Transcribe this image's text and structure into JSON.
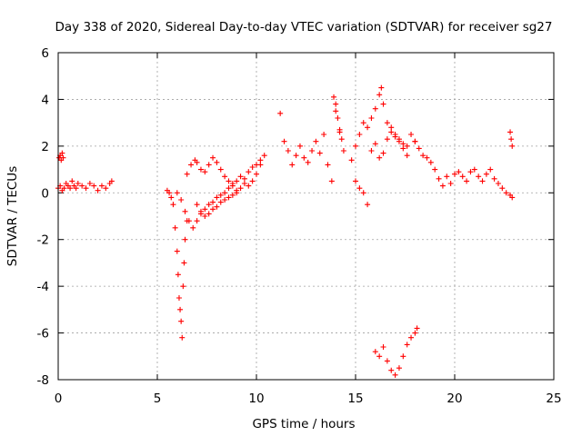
{
  "chart_data": {
    "type": "scatter",
    "title": "Day 338 of 2020, Sidereal Day-to-day VTEC variation (SDTVAR) for receiver sg27",
    "xlabel": "GPS time / hours",
    "ylabel": "SDTVAR / TECUs",
    "xlim": [
      0,
      25
    ],
    "ylim": [
      -8,
      6
    ],
    "xticks": [
      0,
      5,
      10,
      15,
      20,
      25
    ],
    "yticks": [
      -8,
      -6,
      -4,
      -2,
      0,
      2,
      4,
      6
    ],
    "xtick_labels": [
      "0",
      "5",
      "10",
      "15",
      "20",
      "25"
    ],
    "ytick_labels": [
      "-8",
      "-6",
      "-4",
      "-2",
      "0",
      "2",
      "4",
      "6"
    ],
    "grid": true,
    "marker": "+",
    "color": "#ff0000",
    "series": [
      {
        "name": "SDTVAR",
        "x": [
          0.0,
          0.1,
          0.2,
          0.3,
          0.4,
          0.5,
          0.6,
          0.7,
          0.8,
          0.9,
          1.0,
          1.2,
          1.4,
          1.6,
          1.8,
          2.0,
          2.2,
          2.4,
          2.6,
          2.7,
          0.05,
          0.1,
          0.15,
          0.2,
          0.25,
          5.5,
          5.6,
          5.7,
          5.8,
          5.9,
          6.0,
          6.05,
          6.1,
          6.15,
          6.2,
          6.25,
          6.3,
          6.35,
          6.4,
          6.5,
          6.5,
          6.7,
          6.9,
          7.0,
          7.2,
          7.4,
          7.6,
          7.8,
          8.0,
          8.2,
          8.4,
          8.6,
          8.8,
          9.0,
          9.2,
          9.4,
          9.6,
          9.8,
          10.0,
          10.2,
          6.0,
          6.2,
          6.4,
          6.6,
          6.8,
          7.0,
          7.2,
          7.4,
          7.6,
          7.8,
          8.0,
          8.2,
          8.4,
          8.6,
          8.8,
          9.0,
          9.2,
          9.4,
          9.6,
          9.8,
          10.0,
          10.2,
          10.4,
          7.0,
          7.2,
          7.4,
          7.6,
          7.8,
          8.0,
          8.2,
          8.4,
          8.6,
          8.8,
          9.0,
          11.2,
          11.4,
          11.6,
          11.8,
          12.0,
          12.2,
          12.4,
          12.6,
          12.8,
          13.0,
          13.2,
          13.4,
          13.6,
          13.8,
          14.0,
          14.2,
          14.4,
          13.9,
          14.0,
          14.1,
          14.2,
          14.3,
          14.8,
          15.0,
          15.2,
          15.4,
          15.6,
          15.8,
          16.0,
          16.2,
          16.3,
          16.4,
          16.6,
          16.8,
          17.0,
          17.2,
          17.4,
          17.6,
          17.8,
          18.0,
          15.0,
          15.2,
          15.4,
          15.6,
          15.8,
          16.0,
          16.2,
          16.4,
          16.6,
          16.8,
          17.0,
          17.2,
          17.4,
          17.6,
          18.0,
          18.2,
          18.4,
          18.6,
          18.8,
          19.0,
          19.2,
          19.4,
          19.6,
          19.8,
          20.0,
          20.2,
          20.4,
          20.6,
          20.8,
          21.0,
          21.2,
          21.4,
          21.6,
          21.8,
          22.0,
          22.2,
          22.4,
          22.6,
          22.8,
          22.9,
          22.8,
          22.85,
          22.9,
          16.0,
          16.2,
          16.4,
          16.6,
          16.8,
          17.0,
          17.2,
          17.4,
          17.6,
          17.8,
          18.0,
          18.1
        ],
        "y": [
          0.2,
          0.3,
          0.1,
          0.2,
          0.4,
          0.3,
          0.2,
          0.5,
          0.3,
          0.2,
          0.4,
          0.3,
          0.2,
          0.4,
          0.3,
          0.1,
          0.3,
          0.2,
          0.4,
          0.5,
          1.5,
          1.6,
          1.4,
          1.7,
          1.5,
          0.1,
          0.0,
          -0.2,
          -0.5,
          -1.5,
          -2.5,
          -3.5,
          -4.5,
          -5.0,
          -5.5,
          -6.2,
          -4.0,
          -3.0,
          -2.0,
          -1.2,
          0.8,
          1.2,
          1.4,
          1.3,
          1.0,
          0.9,
          1.2,
          1.5,
          1.3,
          1.0,
          0.7,
          0.5,
          0.3,
          0.1,
          0.2,
          0.4,
          0.3,
          0.5,
          0.8,
          1.2,
          0.0,
          -0.3,
          -0.8,
          -1.2,
          -1.5,
          -1.2,
          -0.9,
          -0.7,
          -0.5,
          -0.4,
          -0.2,
          -0.1,
          0.0,
          0.2,
          0.4,
          0.5,
          0.7,
          0.6,
          0.9,
          1.1,
          1.2,
          1.4,
          1.6,
          -0.5,
          -0.8,
          -1.0,
          -0.9,
          -0.7,
          -0.6,
          -0.4,
          -0.3,
          -0.2,
          -0.1,
          0.0,
          3.4,
          2.2,
          1.8,
          1.2,
          1.6,
          2.0,
          1.5,
          1.3,
          1.8,
          2.2,
          1.7,
          2.5,
          1.2,
          0.5,
          3.5,
          2.6,
          1.8,
          4.1,
          3.8,
          3.2,
          2.7,
          2.3,
          1.4,
          2.0,
          2.5,
          3.0,
          2.8,
          3.2,
          3.6,
          4.2,
          4.5,
          3.8,
          3.0,
          2.6,
          2.4,
          2.3,
          2.1,
          2.0,
          2.5,
          2.2,
          0.5,
          0.2,
          0.0,
          -0.5,
          1.8,
          2.1,
          1.5,
          1.7,
          2.3,
          2.8,
          2.5,
          2.2,
          1.9,
          1.6,
          2.2,
          1.9,
          1.6,
          1.5,
          1.3,
          1.0,
          0.6,
          0.3,
          0.7,
          0.4,
          0.8,
          0.9,
          0.7,
          0.5,
          0.9,
          1.0,
          0.7,
          0.5,
          0.8,
          1.0,
          0.6,
          0.4,
          0.2,
          0.0,
          -0.1,
          -0.2,
          2.6,
          2.3,
          2.0,
          -6.8,
          -7.0,
          -6.6,
          -7.2,
          -7.6,
          -7.8,
          -7.5,
          -7.0,
          -6.5,
          -6.2,
          -6.0,
          -5.8
        ]
      }
    ]
  }
}
